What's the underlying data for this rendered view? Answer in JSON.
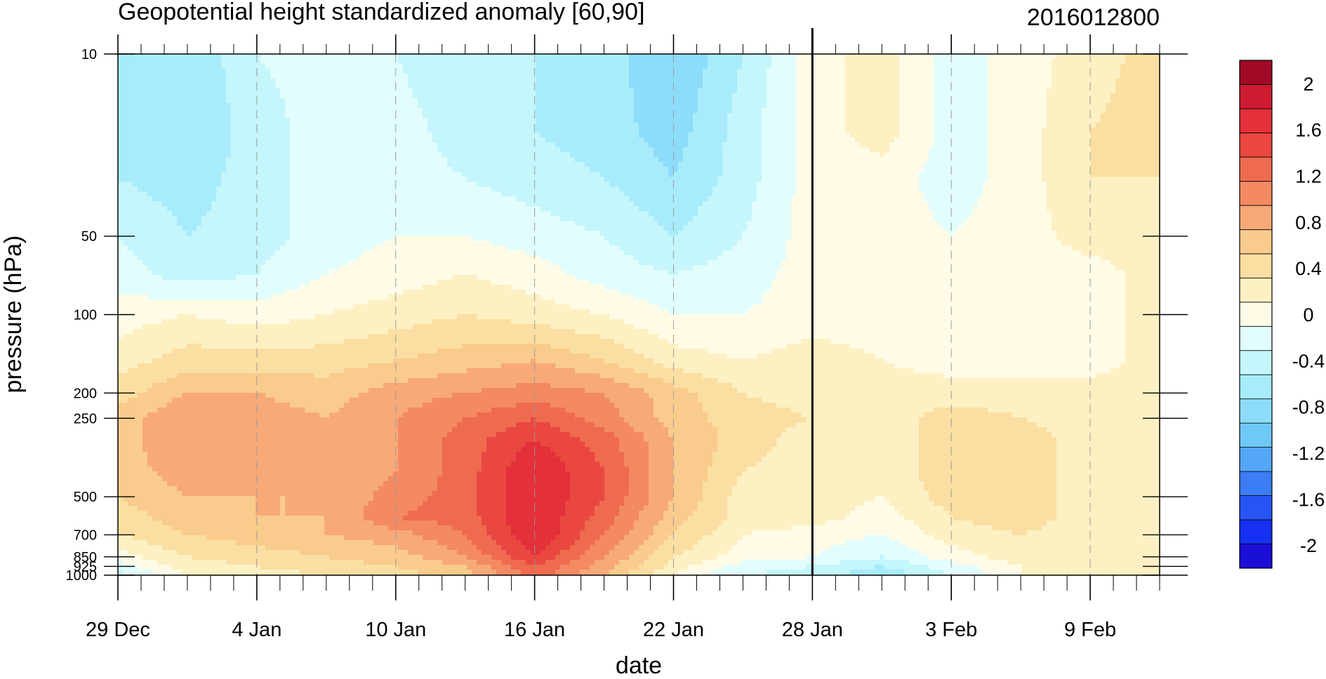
{
  "chart_data": {
    "type": "heatmap",
    "title": "Geopotential height standardized anomaly [60,90]",
    "date_stamp": "2016012800",
    "xlabel": "date",
    "ylabel": "pressure (hPa)",
    "x_ticks": [
      "29 Dec",
      "4 Jan",
      "10 Jan",
      "16 Jan",
      "22 Jan",
      "28 Jan",
      "3 Feb",
      "9 Feb"
    ],
    "x_range_days": [
      0,
      45
    ],
    "current_day_line": "28 Jan",
    "y_ticks": [
      "10",
      "50",
      "100",
      "200",
      "250",
      "500",
      "700",
      "850",
      "925",
      "1000"
    ],
    "y_tick_values": [
      10,
      50,
      100,
      200,
      250,
      500,
      700,
      850,
      925,
      1000
    ],
    "y_scale": "log",
    "y_range": [
      10,
      1000
    ],
    "grid": "vertical dashed lines at labeled dates",
    "colorbar": {
      "tick_labels": [
        "2",
        "1.6",
        "1.2",
        "0.8",
        "0.4",
        "0",
        "-0.4",
        "-0.8",
        "-1.2",
        "-1.6",
        "-2"
      ],
      "tick_values": [
        2,
        1.6,
        1.2,
        0.8,
        0.4,
        0,
        -0.4,
        -0.8,
        -1.2,
        -1.6,
        -2
      ],
      "levels": [
        -2.2,
        -2.0,
        -1.8,
        -1.6,
        -1.4,
        -1.2,
        -1.0,
        -0.8,
        -0.6,
        -0.4,
        -0.2,
        0,
        0.2,
        0.4,
        0.6,
        0.8,
        1.0,
        1.2,
        1.4,
        1.6,
        1.8,
        2.0,
        2.2
      ],
      "colors": [
        "#1a0fd6",
        "#1530f0",
        "#2754f5",
        "#3c7cf5",
        "#54a6f6",
        "#6ec8f8",
        "#8ddcf9",
        "#a8ecfb",
        "#c4f6fc",
        "#e2fdfd",
        "#fffbe6",
        "#fdf0c2",
        "#fbdea1",
        "#f9cb8c",
        "#f7a978",
        "#f38a62",
        "#ef6b50",
        "#ea4741",
        "#e3303a",
        "#cd1c31",
        "#a00a26"
      ]
    },
    "grid_days": [
      0,
      3,
      6,
      9,
      12,
      15,
      18,
      21,
      24,
      27,
      30,
      33,
      36,
      39,
      42,
      45
    ],
    "grid_pressures": [
      10,
      20,
      30,
      50,
      70,
      100,
      150,
      200,
      250,
      300,
      400,
      500,
      600,
      700,
      850,
      925,
      1000
    ],
    "values": [
      [
        -0.7,
        -0.8,
        -0.4,
        -0.3,
        -0.4,
        -0.6,
        -0.6,
        -0.7,
        -1.0,
        -0.6,
        -0.1,
        0.1,
        -0.3,
        -0.1,
        0.1,
        0.3
      ],
      [
        -0.7,
        -0.8,
        -0.5,
        -0.3,
        -0.3,
        -0.5,
        -0.6,
        -0.7,
        -0.9,
        -0.5,
        -0.1,
        0.1,
        -0.3,
        -0.1,
        0.2,
        0.3
      ],
      [
        -0.6,
        -0.7,
        -0.5,
        -0.3,
        -0.3,
        -0.4,
        -0.5,
        -0.6,
        -0.8,
        -0.5,
        -0.1,
        -0.1,
        -0.3,
        -0.1,
        0.2,
        0.2
      ],
      [
        -0.4,
        -0.6,
        -0.5,
        -0.3,
        -0.2,
        -0.2,
        -0.3,
        -0.4,
        -0.6,
        -0.4,
        -0.1,
        -0.1,
        -0.2,
        -0.1,
        0.1,
        0.1
      ],
      [
        -0.3,
        -0.5,
        -0.4,
        -0.2,
        -0.1,
        0.0,
        -0.1,
        -0.3,
        -0.4,
        -0.3,
        -0.1,
        -0.1,
        -0.1,
        -0.1,
        -0.1,
        0.1
      ],
      [
        -0.1,
        0.0,
        -0.1,
        0.0,
        0.1,
        0.2,
        0.1,
        0.0,
        -0.2,
        -0.2,
        -0.1,
        -0.1,
        -0.1,
        -0.1,
        -0.1,
        0.1
      ],
      [
        0.1,
        0.3,
        0.3,
        0.3,
        0.4,
        0.5,
        0.6,
        0.4,
        0.1,
        0.0,
        0.1,
        0.0,
        -0.1,
        -0.1,
        -0.1,
        0.1
      ],
      [
        0.3,
        0.6,
        0.6,
        0.5,
        0.7,
        0.8,
        0.9,
        0.8,
        0.5,
        0.2,
        0.1,
        0.1,
        0.1,
        0.1,
        0.1,
        0.1
      ],
      [
        0.5,
        0.8,
        0.7,
        0.6,
        0.8,
        1.0,
        1.2,
        0.9,
        0.5,
        0.3,
        0.2,
        0.1,
        0.3,
        0.2,
        0.1,
        0.1
      ],
      [
        0.5,
        0.8,
        0.7,
        0.6,
        0.8,
        1.1,
        1.4,
        1.1,
        0.6,
        0.3,
        0.1,
        0.1,
        0.3,
        0.3,
        0.1,
        0.1
      ],
      [
        0.5,
        0.7,
        0.7,
        0.6,
        0.8,
        1.1,
        1.6,
        1.2,
        0.6,
        0.2,
        0.1,
        0.1,
        0.3,
        0.3,
        0.1,
        0.1
      ],
      [
        0.4,
        0.6,
        0.6,
        0.6,
        0.9,
        1.1,
        1.6,
        1.2,
        0.6,
        0.1,
        0.1,
        0.0,
        0.3,
        0.3,
        0.1,
        0.1
      ],
      [
        0.3,
        0.5,
        0.6,
        0.6,
        1.0,
        1.1,
        1.6,
        1.1,
        0.5,
        0.1,
        0.1,
        -0.1,
        0.2,
        0.3,
        0.1,
        0.1
      ],
      [
        0.2,
        0.4,
        0.5,
        0.6,
        0.7,
        1.0,
        1.6,
        1.0,
        0.4,
        0.0,
        -0.1,
        -0.2,
        0.1,
        0.2,
        0.1,
        0.2
      ],
      [
        -0.1,
        0.2,
        0.3,
        0.4,
        0.5,
        0.8,
        1.4,
        0.8,
        0.2,
        -0.1,
        -0.2,
        -0.4,
        -0.1,
        0.1,
        0.1,
        0.1
      ],
      [
        -0.3,
        0.1,
        0.2,
        0.3,
        0.4,
        0.6,
        1.2,
        0.7,
        0.1,
        -0.3,
        -0.4,
        -0.6,
        -0.3,
        0.0,
        0.1,
        0.1
      ],
      [
        -0.5,
        0.0,
        0.1,
        0.2,
        0.3,
        0.5,
        1.1,
        0.6,
        0.0,
        -0.4,
        -0.5,
        -0.8,
        -0.4,
        0.0,
        0.1,
        0.1
      ]
    ]
  }
}
